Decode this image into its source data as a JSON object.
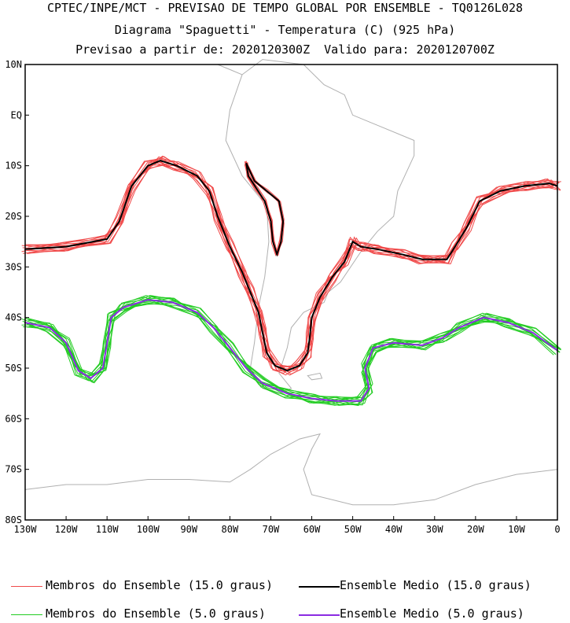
{
  "title_lines": [
    "CPTEC/INPE/MCT - PREVISAO DE TEMPO GLOBAL POR ENSEMBLE - TQ0126L028",
    "Diagrama \"Spaguetti\" - Temperatura (C) (925 hPa)",
    "Previsao a partir de: 2020120300Z  Valido para: 2020120700Z"
  ],
  "map": {
    "lon_range": [
      -130,
      0
    ],
    "lat_range": [
      -80,
      10
    ],
    "lat_ticks": [
      {
        "value": 10,
        "label": "10N"
      },
      {
        "value": 0,
        "label": "EQ"
      },
      {
        "value": -10,
        "label": "10S"
      },
      {
        "value": -20,
        "label": "20S"
      },
      {
        "value": -30,
        "label": "30S"
      },
      {
        "value": -40,
        "label": "40S"
      },
      {
        "value": -50,
        "label": "50S"
      },
      {
        "value": -60,
        "label": "60S"
      },
      {
        "value": -70,
        "label": "70S"
      },
      {
        "value": -80,
        "label": "80S"
      }
    ],
    "lon_ticks": [
      {
        "value": -130,
        "label": "130W"
      },
      {
        "value": -120,
        "label": "120W"
      },
      {
        "value": -110,
        "label": "110W"
      },
      {
        "value": -100,
        "label": "100W"
      },
      {
        "value": -90,
        "label": "90W"
      },
      {
        "value": -80,
        "label": "80W"
      },
      {
        "value": -70,
        "label": "70W"
      },
      {
        "value": -60,
        "label": "60W"
      },
      {
        "value": -50,
        "label": "50W"
      },
      {
        "value": -40,
        "label": "40W"
      },
      {
        "value": -30,
        "label": "30W"
      },
      {
        "value": -20,
        "label": "20W"
      },
      {
        "value": -10,
        "label": "10W"
      },
      {
        "value": 0,
        "label": "0"
      }
    ],
    "colors": {
      "coast": "#b0b0b0",
      "members15": "#f04a4a",
      "mean15": "#000000",
      "members5": "#22cc22",
      "mean5": "#8a2be2"
    },
    "contour15_mean": [
      [
        -130,
        -26.5
      ],
      [
        -120,
        -26
      ],
      [
        -110,
        -24.5
      ],
      [
        -107,
        -21
      ],
      [
        -104,
        -14
      ],
      [
        -100,
        -10
      ],
      [
        -97,
        -9
      ],
      [
        -93,
        -10
      ],
      [
        -88,
        -12
      ],
      [
        -85,
        -15
      ],
      [
        -83,
        -20
      ],
      [
        -80,
        -26
      ],
      [
        -77,
        -31
      ],
      [
        -75,
        -35
      ],
      [
        -73,
        -39
      ],
      [
        -72,
        -43
      ],
      [
        -71,
        -47
      ],
      [
        -69,
        -49.5
      ],
      [
        -66,
        -50.5
      ],
      [
        -63,
        -49.5
      ],
      [
        -61,
        -47
      ],
      [
        -60.5,
        -44
      ],
      [
        -60,
        -40
      ],
      [
        -58,
        -36
      ],
      [
        -55,
        -32
      ],
      [
        -52,
        -29
      ],
      [
        -50,
        -25
      ],
      [
        -48,
        -26
      ],
      [
        -44,
        -26.5
      ],
      [
        -38,
        -27.5
      ],
      [
        -33,
        -28.5
      ],
      [
        -27,
        -28.5
      ],
      [
        -25,
        -26
      ],
      [
        -22,
        -22
      ],
      [
        -19,
        -17
      ],
      [
        -14,
        -15
      ],
      [
        -8,
        -14
      ],
      [
        -2,
        -13.5
      ],
      [
        0,
        -14
      ]
    ],
    "contour15_andes": [
      [
        -76,
        -9.5
      ],
      [
        -74,
        -13
      ],
      [
        -71,
        -15
      ],
      [
        -68,
        -17
      ],
      [
        -67,
        -21
      ],
      [
        -67.5,
        -25
      ],
      [
        -68.5,
        -27.5
      ],
      [
        -69.5,
        -25
      ],
      [
        -70,
        -21
      ],
      [
        -71.5,
        -17
      ],
      [
        -73.5,
        -14.5
      ],
      [
        -75.5,
        -12
      ],
      [
        -76,
        -9.5
      ]
    ],
    "contour5_mean": [
      [
        -130,
        -41
      ],
      [
        -124,
        -42
      ],
      [
        -120,
        -45
      ],
      [
        -117,
        -50.5
      ],
      [
        -114,
        -52
      ],
      [
        -111,
        -50
      ],
      [
        -110,
        -45
      ],
      [
        -109,
        -40
      ],
      [
        -106,
        -38
      ],
      [
        -100,
        -36.5
      ],
      [
        -94,
        -37
      ],
      [
        -88,
        -39
      ],
      [
        -84,
        -42
      ],
      [
        -80,
        -46
      ],
      [
        -76,
        -50
      ],
      [
        -72,
        -53
      ],
      [
        -66,
        -55
      ],
      [
        -60,
        -56
      ],
      [
        -54,
        -56.5
      ],
      [
        -48,
        -56.5
      ],
      [
        -46,
        -54
      ],
      [
        -47,
        -50
      ],
      [
        -45,
        -46
      ],
      [
        -40,
        -45
      ],
      [
        -33,
        -45.5
      ],
      [
        -28,
        -44
      ],
      [
        -24,
        -42
      ],
      [
        -18,
        -40
      ],
      [
        -12,
        -41
      ],
      [
        -6,
        -43
      ],
      [
        0,
        -46.5
      ]
    ]
  },
  "legend": {
    "members15_label": "Membros do Ensemble (15.0 graus)",
    "mean15_label": "Ensemble Medio (15.0 graus)",
    "members5_label": "Membros do Ensemble (5.0 graus)",
    "mean5_label": "Ensemble Medio (5.0 graus)"
  }
}
